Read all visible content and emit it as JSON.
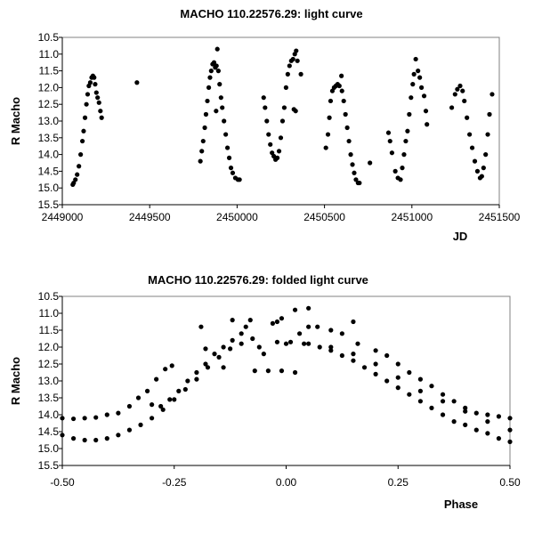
{
  "chart_data": [
    {
      "type": "scatter",
      "title": "MACHO 110.22576.29: light curve",
      "xlabel": "JD",
      "ylabel": "R Macho",
      "xlim": [
        2449000,
        2451500
      ],
      "ylim": [
        10.5,
        15.5
      ],
      "y_inverted": true,
      "grid": false,
      "xticks": [
        "2449000",
        "2449500",
        "2450000",
        "2450500",
        "2451000",
        "2451500"
      ],
      "yticks": [
        "10.5",
        "11.0",
        "11.5",
        "12.0",
        "12.5",
        "13.0",
        "13.5",
        "14.0",
        "14.5",
        "15.0",
        "15.5"
      ],
      "points": [
        [
          2449060,
          14.9
        ],
        [
          2449065,
          14.85
        ],
        [
          2449075,
          14.75
        ],
        [
          2449085,
          14.6
        ],
        [
          2449095,
          14.35
        ],
        [
          2449105,
          14.0
        ],
        [
          2449115,
          13.6
        ],
        [
          2449122,
          13.3
        ],
        [
          2449130,
          12.9
        ],
        [
          2449138,
          12.5
        ],
        [
          2449145,
          12.2
        ],
        [
          2449152,
          11.95
        ],
        [
          2449160,
          11.85
        ],
        [
          2449168,
          11.7
        ],
        [
          2449175,
          11.65
        ],
        [
          2449182,
          11.7
        ],
        [
          2449188,
          11.9
        ],
        [
          2449195,
          12.15
        ],
        [
          2449202,
          12.3
        ],
        [
          2449210,
          12.45
        ],
        [
          2449218,
          12.7
        ],
        [
          2449225,
          12.9
        ],
        [
          2449427,
          11.85
        ],
        [
          2449790,
          14.2
        ],
        [
          2449798,
          13.9
        ],
        [
          2449806,
          13.6
        ],
        [
          2449815,
          13.2
        ],
        [
          2449822,
          12.8
        ],
        [
          2449830,
          12.4
        ],
        [
          2449838,
          12.0
        ],
        [
          2449845,
          11.7
        ],
        [
          2449852,
          11.5
        ],
        [
          2449860,
          11.3
        ],
        [
          2449868,
          11.25
        ],
        [
          2449875,
          11.4
        ],
        [
          2449882,
          11.35
        ],
        [
          2449887,
          10.85
        ],
        [
          2449880,
          12.7
        ],
        [
          2449893,
          11.5
        ],
        [
          2449900,
          11.9
        ],
        [
          2449908,
          12.3
        ],
        [
          2449915,
          12.6
        ],
        [
          2449925,
          13.0
        ],
        [
          2449935,
          13.4
        ],
        [
          2449945,
          13.8
        ],
        [
          2449955,
          14.1
        ],
        [
          2449965,
          14.4
        ],
        [
          2449975,
          14.55
        ],
        [
          2449990,
          14.7
        ],
        [
          2450005,
          14.75
        ],
        [
          2450014,
          14.75
        ],
        [
          2450152,
          12.3
        ],
        [
          2450160,
          12.6
        ],
        [
          2450170,
          13.0
        ],
        [
          2450180,
          13.4
        ],
        [
          2450190,
          13.7
        ],
        [
          2450200,
          13.95
        ],
        [
          2450210,
          14.05
        ],
        [
          2450220,
          14.15
        ],
        [
          2450230,
          14.1
        ],
        [
          2450240,
          13.9
        ],
        [
          2450250,
          13.5
        ],
        [
          2450260,
          13.0
        ],
        [
          2450270,
          12.6
        ],
        [
          2450280,
          12.0
        ],
        [
          2450290,
          11.6
        ],
        [
          2450300,
          11.35
        ],
        [
          2450310,
          11.2
        ],
        [
          2450320,
          11.15
        ],
        [
          2450330,
          11.0
        ],
        [
          2450338,
          10.9
        ],
        [
          2450325,
          12.65
        ],
        [
          2450335,
          12.7
        ],
        [
          2450345,
          11.2
        ],
        [
          2450365,
          11.6
        ],
        [
          2450508,
          13.8
        ],
        [
          2450520,
          13.4
        ],
        [
          2450528,
          12.9
        ],
        [
          2450535,
          12.4
        ],
        [
          2450545,
          12.1
        ],
        [
          2450555,
          12.0
        ],
        [
          2450565,
          11.95
        ],
        [
          2450575,
          11.9
        ],
        [
          2450585,
          11.95
        ],
        [
          2450597,
          11.65
        ],
        [
          2450600,
          12.1
        ],
        [
          2450610,
          12.4
        ],
        [
          2450620,
          12.8
        ],
        [
          2450630,
          13.2
        ],
        [
          2450640,
          13.6
        ],
        [
          2450650,
          14.0
        ],
        [
          2450660,
          14.3
        ],
        [
          2450670,
          14.55
        ],
        [
          2450680,
          14.75
        ],
        [
          2450692,
          14.85
        ],
        [
          2450700,
          14.85
        ],
        [
          2450760,
          14.25
        ],
        [
          2450866,
          13.35
        ],
        [
          2450875,
          13.6
        ],
        [
          2450886,
          13.95
        ],
        [
          2450905,
          14.5
        ],
        [
          2450920,
          14.7
        ],
        [
          2450935,
          14.75
        ],
        [
          2450945,
          14.4
        ],
        [
          2450955,
          14.0
        ],
        [
          2450965,
          13.6
        ],
        [
          2450975,
          13.3
        ],
        [
          2450985,
          12.8
        ],
        [
          2450995,
          12.3
        ],
        [
          2451005,
          11.9
        ],
        [
          2451012,
          11.6
        ],
        [
          2451022,
          11.15
        ],
        [
          2451035,
          11.5
        ],
        [
          2451045,
          11.7
        ],
        [
          2451055,
          12.0
        ],
        [
          2451070,
          12.25
        ],
        [
          2451080,
          12.7
        ],
        [
          2451086,
          13.1
        ],
        [
          2451228,
          12.6
        ],
        [
          2451247,
          12.2
        ],
        [
          2451260,
          12.05
        ],
        [
          2451276,
          11.95
        ],
        [
          2451290,
          12.1
        ],
        [
          2451300,
          12.4
        ],
        [
          2451315,
          12.9
        ],
        [
          2451330,
          13.4
        ],
        [
          2451345,
          13.8
        ],
        [
          2451360,
          14.2
        ],
        [
          2451375,
          14.5
        ],
        [
          2451390,
          14.7
        ],
        [
          2451400,
          14.65
        ],
        [
          2451410,
          14.4
        ],
        [
          2451422,
          14.0
        ],
        [
          2451434,
          13.4
        ],
        [
          2451444,
          12.8
        ],
        [
          2451459,
          12.2
        ]
      ]
    },
    {
      "type": "scatter",
      "title": "MACHO 110.22576.29: folded light curve",
      "xlabel": "Phase",
      "ylabel": "R Macho",
      "xlim": [
        -0.5,
        0.5
      ],
      "ylim": [
        10.5,
        15.5
      ],
      "y_inverted": true,
      "grid": false,
      "xticks": [
        "-0.50",
        "-0.25",
        "0.00",
        "0.25",
        "0.50"
      ],
      "yticks": [
        "10.5",
        "11.0",
        "11.5",
        "12.0",
        "12.5",
        "13.0",
        "13.5",
        "14.0",
        "14.5",
        "15.0",
        "15.5"
      ],
      "points": [
        [
          -0.5,
          14.6
        ],
        [
          -0.475,
          14.7
        ],
        [
          -0.45,
          14.75
        ],
        [
          -0.425,
          14.75
        ],
        [
          -0.4,
          14.7
        ],
        [
          -0.375,
          14.6
        ],
        [
          -0.35,
          14.45
        ],
        [
          -0.325,
          14.3
        ],
        [
          -0.3,
          14.1
        ],
        [
          -0.275,
          13.85
        ],
        [
          -0.25,
          13.55
        ],
        [
          -0.225,
          13.25
        ],
        [
          -0.2,
          12.95
        ],
        [
          -0.175,
          12.6
        ],
        [
          -0.15,
          12.3
        ],
        [
          -0.125,
          12.05
        ],
        [
          -0.1,
          11.9
        ],
        [
          -0.075,
          11.75
        ],
        [
          -0.3,
          13.7
        ],
        [
          -0.28,
          13.75
        ],
        [
          -0.26,
          13.55
        ],
        [
          -0.24,
          13.3
        ],
        [
          -0.22,
          13.0
        ],
        [
          -0.2,
          12.75
        ],
        [
          -0.18,
          12.5
        ],
        [
          -0.16,
          12.2
        ],
        [
          -0.14,
          12.0
        ],
        [
          -0.12,
          11.8
        ],
        [
          -0.1,
          11.6
        ],
        [
          -0.09,
          11.4
        ],
        [
          -0.08,
          11.2
        ],
        [
          -0.5,
          14.1
        ],
        [
          -0.475,
          14.12
        ],
        [
          -0.45,
          14.1
        ],
        [
          -0.425,
          14.08
        ],
        [
          -0.4,
          14.0
        ],
        [
          -0.375,
          13.95
        ],
        [
          -0.35,
          13.75
        ],
        [
          -0.33,
          13.5
        ],
        [
          -0.31,
          13.3
        ],
        [
          -0.29,
          12.95
        ],
        [
          -0.27,
          12.65
        ],
        [
          -0.255,
          12.55
        ],
        [
          -0.12,
          11.2
        ],
        [
          -0.19,
          11.4
        ],
        [
          -0.18,
          12.05
        ],
        [
          -0.14,
          12.6
        ],
        [
          -0.07,
          12.7
        ],
        [
          -0.04,
          12.7
        ],
        [
          -0.01,
          12.7
        ],
        [
          0.02,
          12.75
        ],
        [
          -0.06,
          12.0
        ],
        [
          -0.05,
          12.2
        ],
        [
          -0.03,
          11.3
        ],
        [
          -0.02,
          11.25
        ],
        [
          -0.01,
          11.15
        ],
        [
          0.01,
          11.85
        ],
        [
          0.0,
          11.9
        ],
        [
          -0.02,
          11.85
        ],
        [
          0.02,
          10.9
        ],
        [
          0.05,
          10.85
        ],
        [
          0.03,
          11.6
        ],
        [
          0.04,
          11.9
        ],
        [
          0.05,
          11.4
        ],
        [
          0.05,
          11.9
        ],
        [
          0.075,
          12.0
        ],
        [
          0.1,
          12.1
        ],
        [
          0.125,
          12.25
        ],
        [
          0.15,
          12.4
        ],
        [
          0.175,
          12.6
        ],
        [
          0.2,
          12.8
        ],
        [
          0.225,
          13.0
        ],
        [
          0.25,
          13.2
        ],
        [
          0.275,
          13.4
        ],
        [
          0.3,
          13.6
        ],
        [
          0.325,
          13.8
        ],
        [
          0.35,
          14.0
        ],
        [
          0.375,
          14.2
        ],
        [
          0.4,
          14.3
        ],
        [
          0.425,
          14.45
        ],
        [
          0.45,
          14.55
        ],
        [
          0.475,
          14.7
        ],
        [
          0.5,
          14.8
        ],
        [
          0.1,
          12.0
        ],
        [
          0.15,
          12.2
        ],
        [
          0.2,
          12.5
        ],
        [
          0.25,
          12.9
        ],
        [
          0.3,
          13.3
        ],
        [
          0.35,
          13.6
        ],
        [
          0.4,
          13.9
        ],
        [
          0.45,
          14.2
        ],
        [
          0.5,
          14.45
        ],
        [
          0.07,
          11.4
        ],
        [
          0.1,
          11.5
        ],
        [
          0.125,
          11.6
        ],
        [
          0.15,
          11.25
        ],
        [
          0.16,
          11.9
        ],
        [
          0.2,
          12.1
        ],
        [
          0.225,
          12.25
        ],
        [
          0.25,
          12.5
        ],
        [
          0.275,
          12.75
        ],
        [
          0.3,
          12.95
        ],
        [
          0.325,
          13.15
        ],
        [
          0.35,
          13.4
        ],
        [
          0.375,
          13.6
        ],
        [
          0.4,
          13.8
        ],
        [
          0.425,
          13.95
        ],
        [
          0.45,
          14.0
        ],
        [
          0.475,
          14.05
        ],
        [
          0.5,
          14.1
        ]
      ]
    }
  ]
}
